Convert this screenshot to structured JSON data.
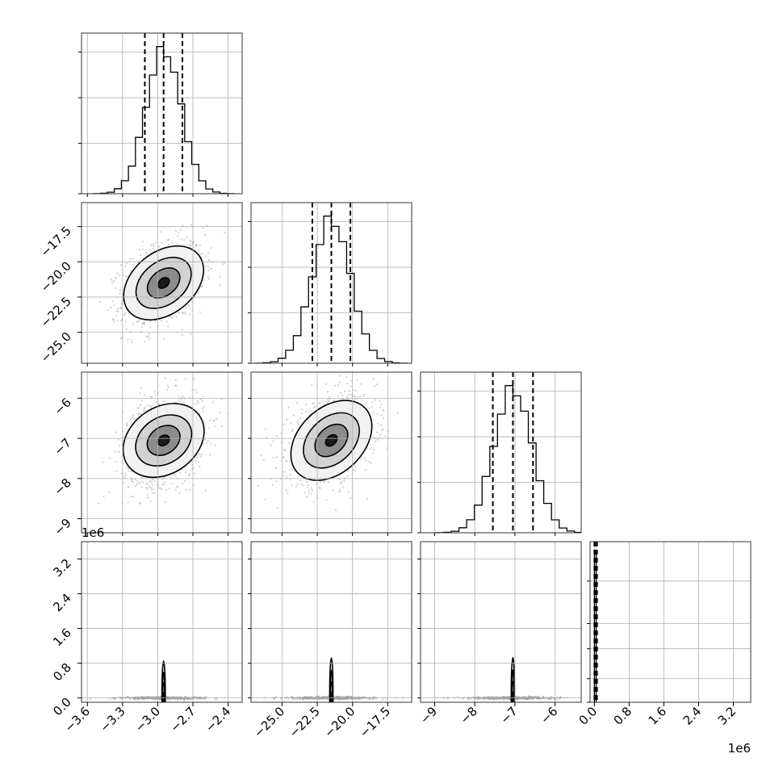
{
  "chart_data": {
    "type": "corner",
    "description_free": true,
    "grid": true,
    "parameters": [
      {
        "id": "p0",
        "range": [
          -3.65,
          -2.28
        ],
        "ticks": [
          -3.6,
          -3.3,
          -3.0,
          -2.7,
          -2.4
        ],
        "tick_labels": [
          "−3.6",
          "−3.3",
          "−3.0",
          "−2.7",
          "−2.4"
        ],
        "mean": -2.95,
        "sd": 0.15,
        "quantiles": [
          -3.11,
          -2.95,
          -2.79
        ],
        "offset_label": ""
      },
      {
        "id": "p1",
        "range": [
          -27.2,
          -15.8
        ],
        "ticks": [
          -25.0,
          -22.5,
          -20.0,
          -17.5
        ],
        "tick_labels": [
          "−25.0",
          "−22.5",
          "−20.0",
          "−17.5"
        ],
        "mean": -21.5,
        "sd": 1.35,
        "quantiles": [
          -22.85,
          -21.5,
          -20.15
        ],
        "offset_label": ""
      },
      {
        "id": "p2",
        "range": [
          -9.35,
          -5.35
        ],
        "ticks": [
          -9,
          -8,
          -7,
          -6
        ],
        "tick_labels": [
          "−9",
          "−8",
          "−7",
          "−6"
        ],
        "mean": -7.05,
        "sd": 0.48,
        "quantiles": [
          -7.55,
          -7.05,
          -6.55
        ],
        "offset_label": ""
      },
      {
        "id": "p3",
        "range": [
          -0.1,
          3.6
        ],
        "ticks": [
          0.0,
          0.8,
          1.6,
          2.4,
          3.2
        ],
        "tick_labels": [
          "0.0",
          "0.8",
          "1.6",
          "2.4",
          "3.2"
        ],
        "mean": 0.02,
        "sd": 0.02,
        "quantiles": [
          0.0,
          0.02,
          0.06
        ],
        "offset_label": "1e6"
      }
    ],
    "pair_correlations": {
      "p1_vs_p0": 0.35,
      "p2_vs_p0": 0.25,
      "p2_vs_p1": 0.35
    },
    "histogram_peak_fraction_p3": 0.93
  }
}
